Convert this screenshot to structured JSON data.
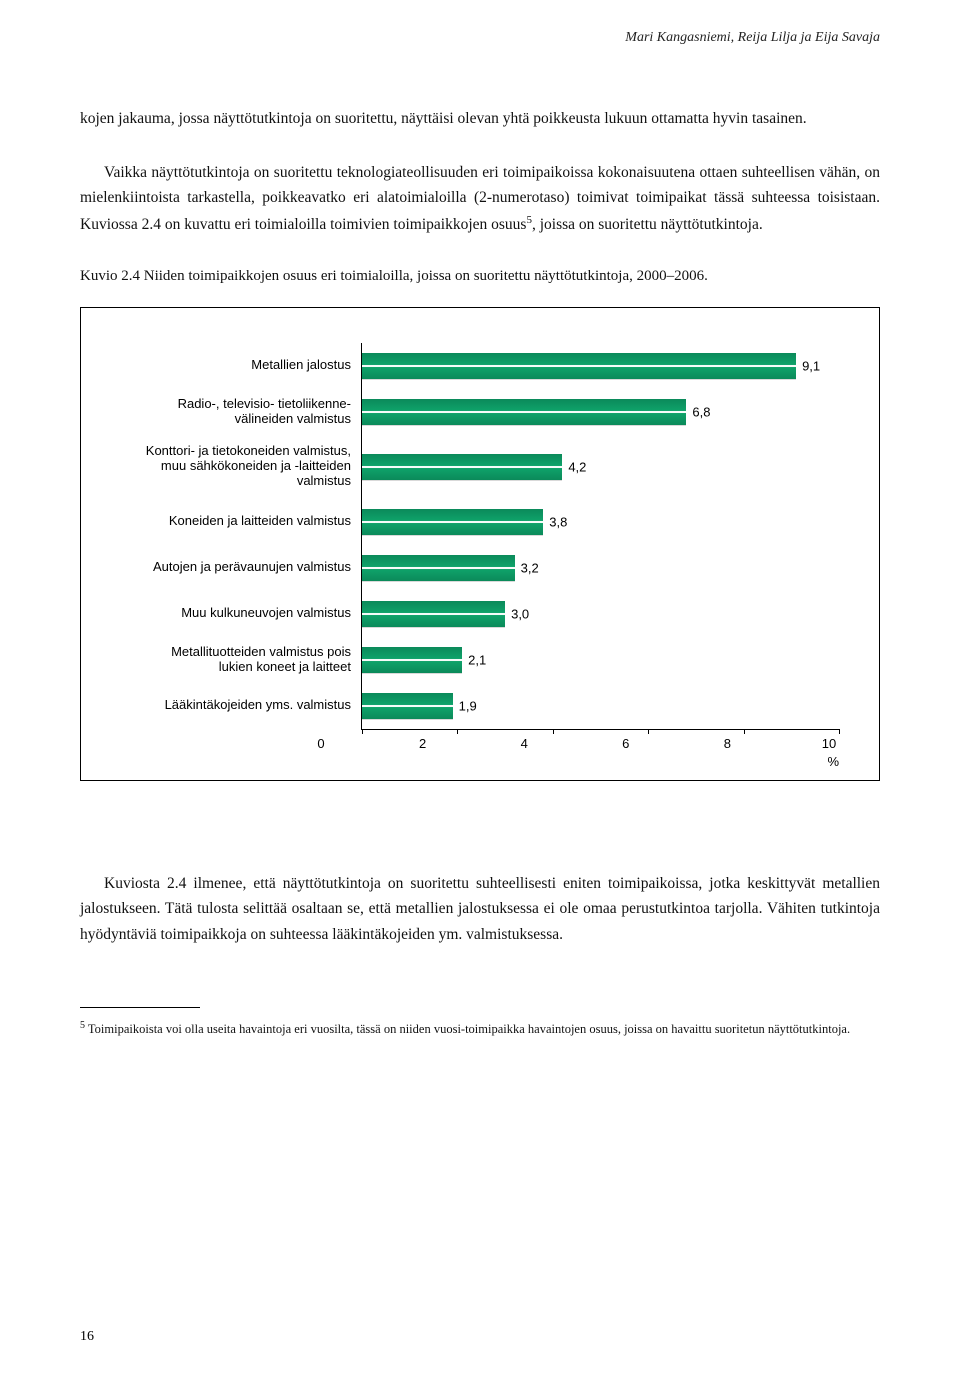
{
  "header": "Mari Kangasniemi, Reija Lilja ja Eija Savaja",
  "para1": "kojen jakauma, jossa näyttötutkintoja on suoritettu, näyttäisi olevan yhtä poikkeusta lukuun ottamatta hyvin tasainen.",
  "para2_a": "Vaikka näyttötutkintoja on suoritettu teknologiateollisuuden eri toimipaikoissa kokonaisuutena ottaen suhteellisen vähän, on mielenkiintoista tarkastella, poikkeavatko eri alatoimialoilla (2-numerotaso) toimivat toimipaikat tässä suhteessa toisistaan. Kuviossa 2.4 on kuvattu eri toimialoilla toimivien toimipaikkojen osuus",
  "para2_b": ", joissa on suoritettu näyttötutkintoja.",
  "caption": "Kuvio 2.4 Niiden toimipaikkojen osuus eri toimialoilla, joissa on suoritettu näyttötutkintoja, 2000–2006.",
  "chart": {
    "type": "bar",
    "xmin": 0,
    "xmax": 10,
    "xticks": [
      "0",
      "2",
      "4",
      "6",
      "8",
      "10"
    ],
    "xunit": "%",
    "bar_fill": "#0b8a5a",
    "categories": [
      {
        "label": "Metallien jalostus",
        "value": 9.1,
        "display": "9,1",
        "tall": false
      },
      {
        "label": "Radio-, televisio- tietoliikenne-\nvälineiden valmistus",
        "value": 6.8,
        "display": "6,8",
        "tall": false
      },
      {
        "label": "Konttori- ja tietokoneiden valmistus,\nmuu sähkökoneiden ja -laitteiden\nvalmistus",
        "value": 4.2,
        "display": "4,2",
        "tall": true
      },
      {
        "label": "Koneiden ja laitteiden valmistus",
        "value": 3.8,
        "display": "3,8",
        "tall": false
      },
      {
        "label": "Autojen ja perävaunujen valmistus",
        "value": 3.2,
        "display": "3,2",
        "tall": false
      },
      {
        "label": "Muu kulkuneuvojen valmistus",
        "value": 3.0,
        "display": "3,0",
        "tall": false
      },
      {
        "label": "Metallituotteiden valmistus pois\nlukien koneet ja laitteet",
        "value": 2.1,
        "display": "2,1",
        "tall": false
      },
      {
        "label": "Lääkintäkojeiden yms. valmistus",
        "value": 1.9,
        "display": "1,9",
        "tall": false
      }
    ]
  },
  "para3": "Kuviosta 2.4 ilmenee, että näyttötutkintoja on suoritettu suhteellisesti eniten toimipaikoissa, jotka keskittyvät metallien jalostukseen. Tätä tulosta selittää osaltaan se, että metallien jalostuksessa ei ole omaa perustutkintoa tarjolla. Vähiten tutkintoja hyödyntäviä toimipaikkoja on suhteessa lääkintäkojeiden ym. valmistuksessa.",
  "footnote_sup": "5",
  "footnote": " Toimipaikoista voi olla useita havaintoja eri vuosilta, tässä on niiden vuosi-toimipaikka havaintojen osuus, joissa on havaittu suoritetun näyttötutkintoja.",
  "page_num": "16"
}
